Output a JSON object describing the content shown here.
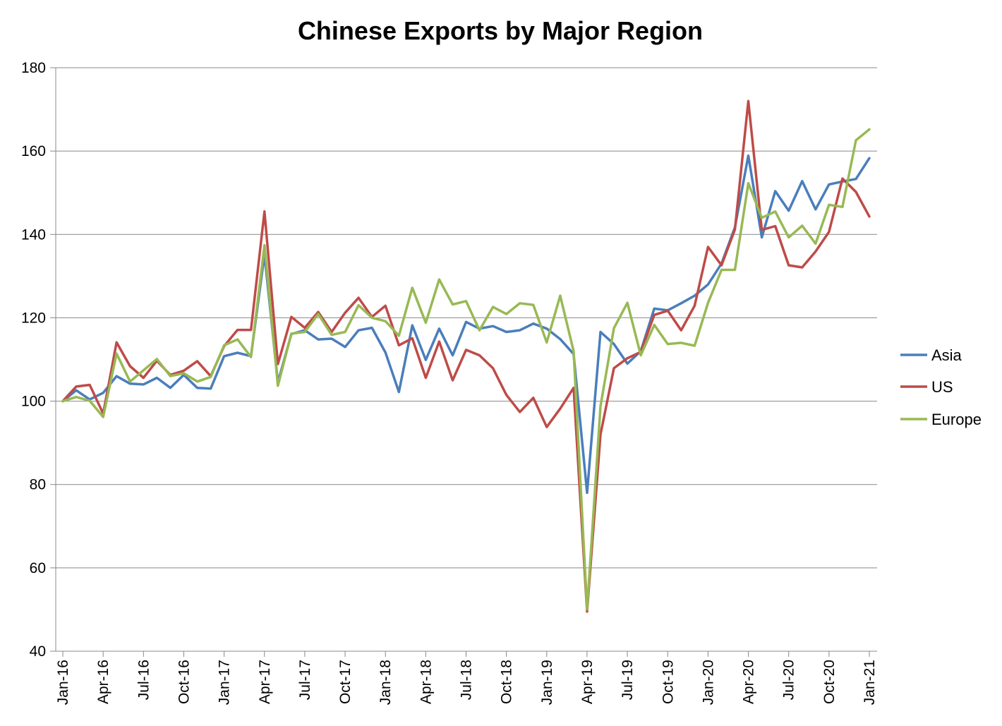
{
  "chart_data": {
    "type": "line",
    "title": "Chinese Exports by Major Region",
    "xlabel": "",
    "ylabel": "",
    "ylim": [
      40,
      180
    ],
    "yticks": [
      40,
      60,
      80,
      100,
      120,
      140,
      160,
      180
    ],
    "grid": "horizontal",
    "legend_position": "right",
    "x_start": "Jan-16",
    "x_tick_labels": [
      "Jan-16",
      "Apr-16",
      "Jul-16",
      "Oct-16",
      "Jan-17",
      "Apr-17",
      "Jul-17",
      "Oct-17",
      "Jan-18",
      "Apr-18",
      "Jul-18",
      "Oct-18",
      "Jan-19",
      "Apr-19",
      "Jul-19",
      "Oct-19",
      "Jan-20",
      "Apr-20",
      "Jul-20",
      "Oct-20",
      "Jan-21"
    ],
    "series": [
      {
        "name": "Asia",
        "color": "#4a7ebb",
        "values": [
          100.0,
          102.6,
          100.4,
          102.0,
          106.0,
          104.2,
          104.0,
          105.6,
          103.2,
          106.3,
          103.2,
          103.0,
          110.8,
          111.6,
          110.8,
          135.2,
          104.5,
          116.1,
          117.0,
          114.8,
          115.0,
          113.0,
          117.0,
          117.6,
          111.7,
          102.2,
          118.2,
          109.9,
          117.4,
          111.0,
          119.0,
          117.4,
          118.0,
          116.6,
          117.0,
          118.6,
          117.4,
          114.9,
          111.3,
          78.0,
          116.6,
          113.7,
          109.0,
          112.0,
          122.2,
          121.8,
          123.5,
          125.3,
          128.0,
          133.0,
          141.7,
          158.9,
          139.3,
          150.4,
          145.7,
          152.8,
          146.0,
          152.0,
          152.7,
          153.3,
          158.3
        ]
      },
      {
        "name": "US",
        "color": "#be4b48",
        "values": [
          100.0,
          103.5,
          103.9,
          97.0,
          114.1,
          108.4,
          105.6,
          109.7,
          106.3,
          107.3,
          109.6,
          106.0,
          113.2,
          117.1,
          117.1,
          145.5,
          108.9,
          120.2,
          117.6,
          121.4,
          116.6,
          121.2,
          124.8,
          120.2,
          122.9,
          113.4,
          115.1,
          105.6,
          114.3,
          105.0,
          112.3,
          111.0,
          107.9,
          101.5,
          97.4,
          100.8,
          93.8,
          98.2,
          103.2,
          49.5,
          92.0,
          107.9,
          110.3,
          111.8,
          120.7,
          121.7,
          117.0,
          122.9,
          137.0,
          132.6,
          141.2,
          172.0,
          141.1,
          142.0,
          132.6,
          132.1,
          135.9,
          140.6,
          153.4,
          150.2,
          144.3
        ]
      },
      {
        "name": "Europe",
        "color": "#98b954",
        "values": [
          100.0,
          101.0,
          100.1,
          96.2,
          111.4,
          104.7,
          107.4,
          110.1,
          106.0,
          106.7,
          104.7,
          105.8,
          113.4,
          114.8,
          110.6,
          137.4,
          103.7,
          116.2,
          116.6,
          120.9,
          115.9,
          116.6,
          123.0,
          120.0,
          119.2,
          115.7,
          127.2,
          118.8,
          129.2,
          123.2,
          124.0,
          117.0,
          122.6,
          120.9,
          123.5,
          123.1,
          114.1,
          125.3,
          112.0,
          50.0,
          98.8,
          117.5,
          123.6,
          111.0,
          118.3,
          113.7,
          114.0,
          113.3,
          123.6,
          131.5,
          131.5,
          152.3,
          144.0,
          145.5,
          139.3,
          142.1,
          137.8,
          147.1,
          146.6,
          162.6,
          165.2
        ]
      }
    ]
  }
}
